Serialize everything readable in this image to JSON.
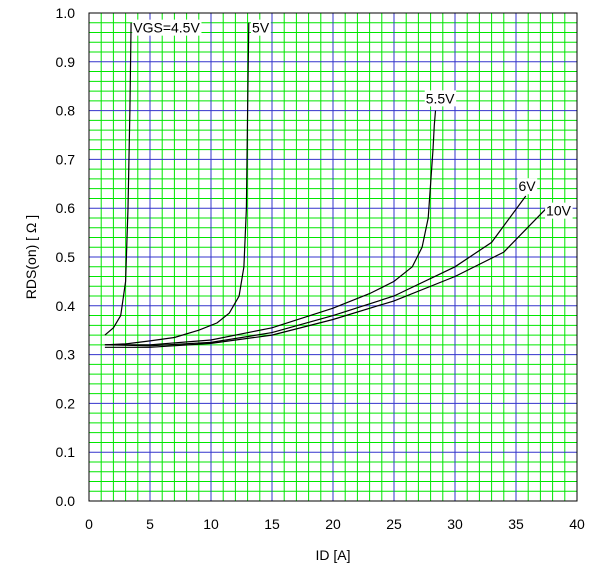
{
  "chart_data": {
    "type": "line",
    "title": "",
    "xlabel": "ID [A]",
    "ylabel": "RDS(on) [ Ω ]",
    "xlim": [
      0,
      40
    ],
    "ylim": [
      0.0,
      1.0
    ],
    "x_ticks": [
      "0",
      "5",
      "10",
      "15",
      "20",
      "25",
      "30",
      "35",
      "40"
    ],
    "y_ticks": [
      "0.0",
      "0.1",
      "0.2",
      "0.3",
      "0.4",
      "0.5",
      "0.6",
      "0.7",
      "0.8",
      "0.9",
      "1.0"
    ],
    "grid": true,
    "colors": {
      "major_grid": "#3333cc",
      "minor_grid": "#00e600",
      "curve": "#000000"
    },
    "series": [
      {
        "name": "VGS=4.5V",
        "x": [
          1.3,
          2.0,
          2.6,
          3.0,
          3.2,
          3.35,
          3.45
        ],
        "y": [
          0.34,
          0.355,
          0.38,
          0.45,
          0.6,
          0.8,
          0.98
        ]
      },
      {
        "name": "5V",
        "x": [
          1.3,
          3.0,
          5.0,
          7.0,
          9.0,
          10.5,
          11.5,
          12.3,
          12.7,
          12.9,
          13.0,
          13.1
        ],
        "y": [
          0.32,
          0.322,
          0.328,
          0.335,
          0.35,
          0.365,
          0.385,
          0.42,
          0.48,
          0.6,
          0.8,
          0.98
        ]
      },
      {
        "name": "5.5V",
        "x": [
          1.3,
          5,
          10,
          15,
          20,
          23,
          25,
          26.5,
          27.3,
          27.8,
          28.0,
          28.2,
          28.3,
          28.4
        ],
        "y": [
          0.32,
          0.32,
          0.33,
          0.355,
          0.395,
          0.425,
          0.45,
          0.48,
          0.52,
          0.58,
          0.65,
          0.72,
          0.77,
          0.8
        ]
      },
      {
        "name": "6V",
        "x": [
          1.3,
          5,
          10,
          15,
          20,
          25,
          30,
          33,
          35.8
        ],
        "y": [
          0.32,
          0.318,
          0.325,
          0.345,
          0.38,
          0.42,
          0.48,
          0.53,
          0.625
        ]
      },
      {
        "name": "10V",
        "x": [
          1.3,
          5,
          10,
          15,
          20,
          25,
          30,
          34,
          37.5
        ],
        "y": [
          0.315,
          0.315,
          0.323,
          0.34,
          0.372,
          0.41,
          0.46,
          0.51,
          0.6
        ]
      }
    ]
  }
}
